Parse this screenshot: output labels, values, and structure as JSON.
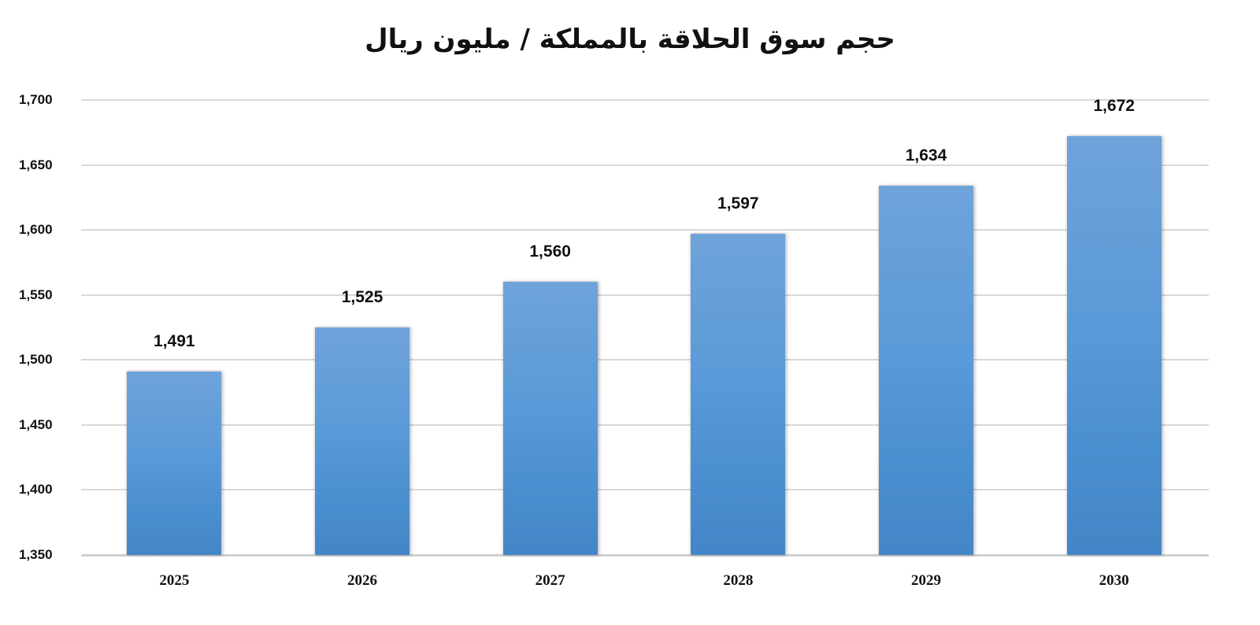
{
  "chart_data": {
    "type": "bar",
    "title": "حجم سوق الحلاقة بالمملكة / مليون ريال",
    "xlabel": "",
    "ylabel": "",
    "categories": [
      "2025",
      "2026",
      "2027",
      "2028",
      "2029",
      "2030"
    ],
    "values": [
      1491,
      1525,
      1560,
      1597,
      1634,
      1672
    ],
    "value_labels": [
      "1,491",
      "1,525",
      "1,560",
      "1,597",
      "1,634",
      "1,672"
    ],
    "ylim": [
      1350,
      1700
    ],
    "yticks": [
      1350,
      1400,
      1450,
      1500,
      1550,
      1600,
      1650,
      1700
    ],
    "ytick_labels": [
      "1,350",
      "1,400",
      "1,450",
      "1,500",
      "1,550",
      "1,600",
      "1,650",
      "1,700"
    ],
    "grid": true,
    "legend": "none",
    "bar_color": "#5a9ad8"
  }
}
